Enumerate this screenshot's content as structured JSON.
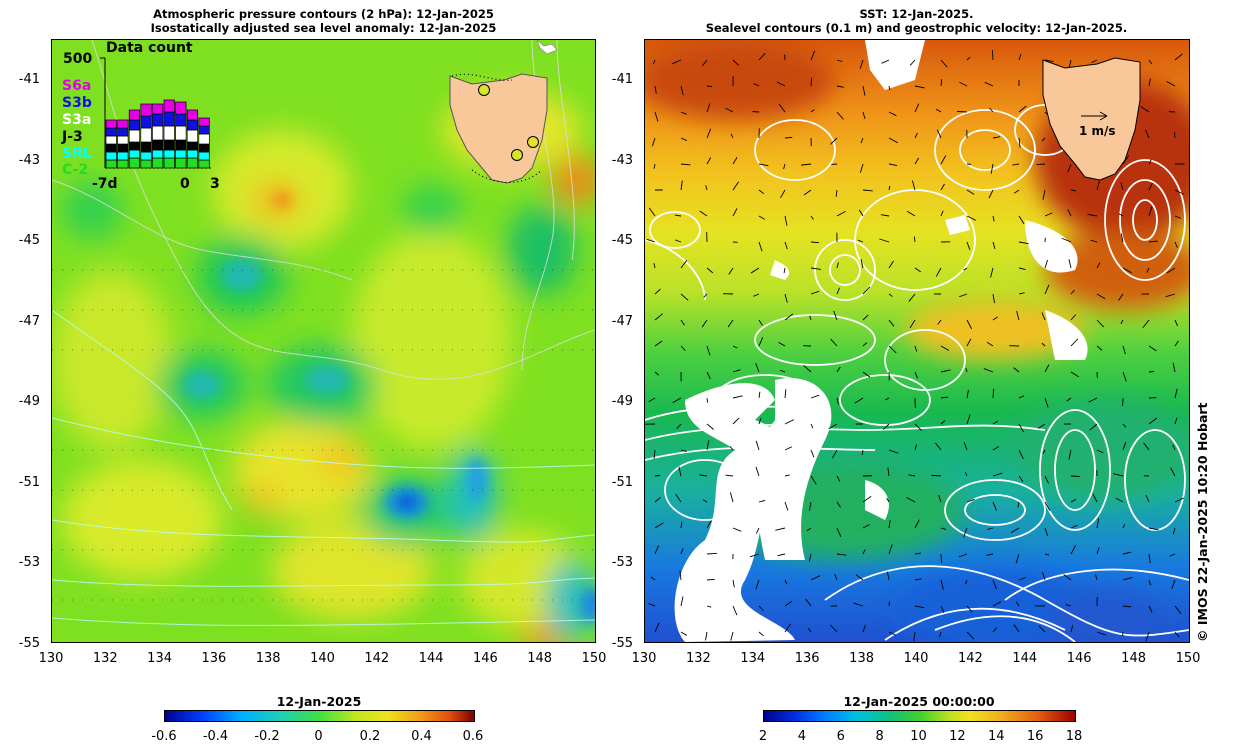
{
  "left_panel": {
    "title_line1": "Atmospheric pressure contours (2 hPa): 12-Jan-2025",
    "title_line2": "Isostatically adjusted sea level anomaly: 12-Jan-2025",
    "inset": {
      "title": "Data count",
      "ymax_label": "500",
      "missions": [
        "S6a",
        "S3b",
        "S3a",
        "J-3",
        "SRL",
        "C-2"
      ],
      "mission_colors": [
        "#e600e6",
        "#1010e0",
        "#ffffff",
        "#000000",
        "#00ffff",
        "#22dd22"
      ],
      "x_labels": [
        "-7d",
        "0",
        "3"
      ]
    },
    "colorbar": {
      "title": "12-Jan-2025",
      "ticks": [
        "-0.6",
        "-0.4",
        "-0.2",
        "0",
        "0.2",
        "0.4",
        "0.6"
      ]
    }
  },
  "right_panel": {
    "title_line1": "SST: 12-Jan-2025.",
    "title_line2": "Sealevel contours (0.1 m) and geostrophic velocity: 12-Jan-2025.",
    "velocity_scale_label": "1 m/s",
    "colorbar": {
      "title": "12-Jan-2025 00:00:00",
      "ticks": [
        "2",
        "4",
        "6",
        "8",
        "10",
        "12",
        "14",
        "16",
        "18"
      ]
    }
  },
  "axes": {
    "y_ticks": [
      "-41",
      "-43",
      "-45",
      "-47",
      "-49",
      "-51",
      "-53",
      "-55"
    ],
    "x_ticks": [
      "130",
      "132",
      "134",
      "136",
      "138",
      "140",
      "142",
      "144",
      "146",
      "148",
      "150"
    ]
  },
  "credit": "© IMOS 22-Jan-2025 10:20 Hobart"
}
